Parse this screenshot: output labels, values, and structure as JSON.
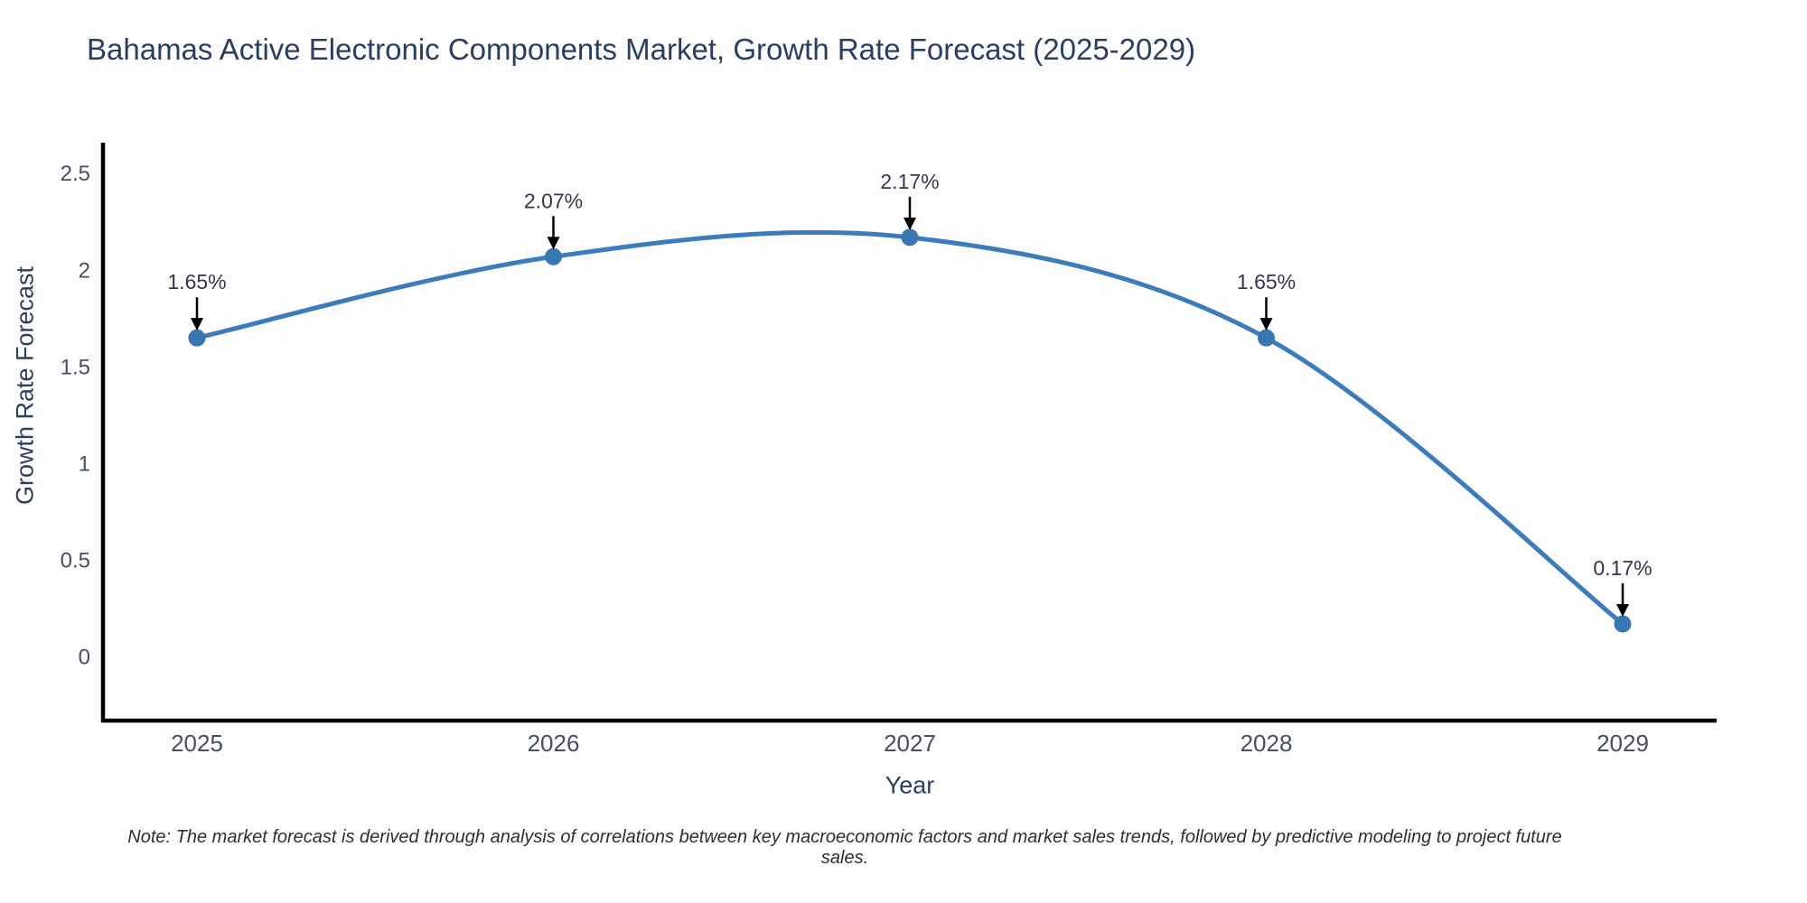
{
  "page": {
    "background_color": "#fdfdfd"
  },
  "chart_data": {
    "type": "line",
    "title": "Bahamas Active Electronic Components Market, Growth Rate Forecast (2025-2029)",
    "xlabel": "Year",
    "ylabel": "Growth Rate Forecast",
    "categories": [
      "2025",
      "2026",
      "2027",
      "2028",
      "2029"
    ],
    "series": [
      {
        "name": "Growth Rate Forecast",
        "values": [
          1.65,
          2.07,
          2.17,
          1.65,
          0.17
        ],
        "point_labels": [
          "1.65%",
          "2.07%",
          "2.17%",
          "1.65%",
          "0.17%"
        ],
        "line_shape": "spline",
        "line_color": "#3d7cba",
        "marker_color": "#3a76b2"
      }
    ],
    "yticks": [
      0,
      0.5,
      1,
      1.5,
      2,
      2.5
    ],
    "ylim": [
      -0.33,
      2.66
    ],
    "grid": false,
    "legend_position": "none",
    "axis_line_color": "#000000",
    "tick_label_color": "#425260",
    "title_color": "#2a3f5f",
    "annotation_text_color": "#2f3b4c",
    "annotation_arrow_color": "#000000",
    "note": "Note: The market forecast is derived through analysis of correlations between key macroeconomic factors and market sales trends, followed by predictive modeling to project future sales."
  }
}
